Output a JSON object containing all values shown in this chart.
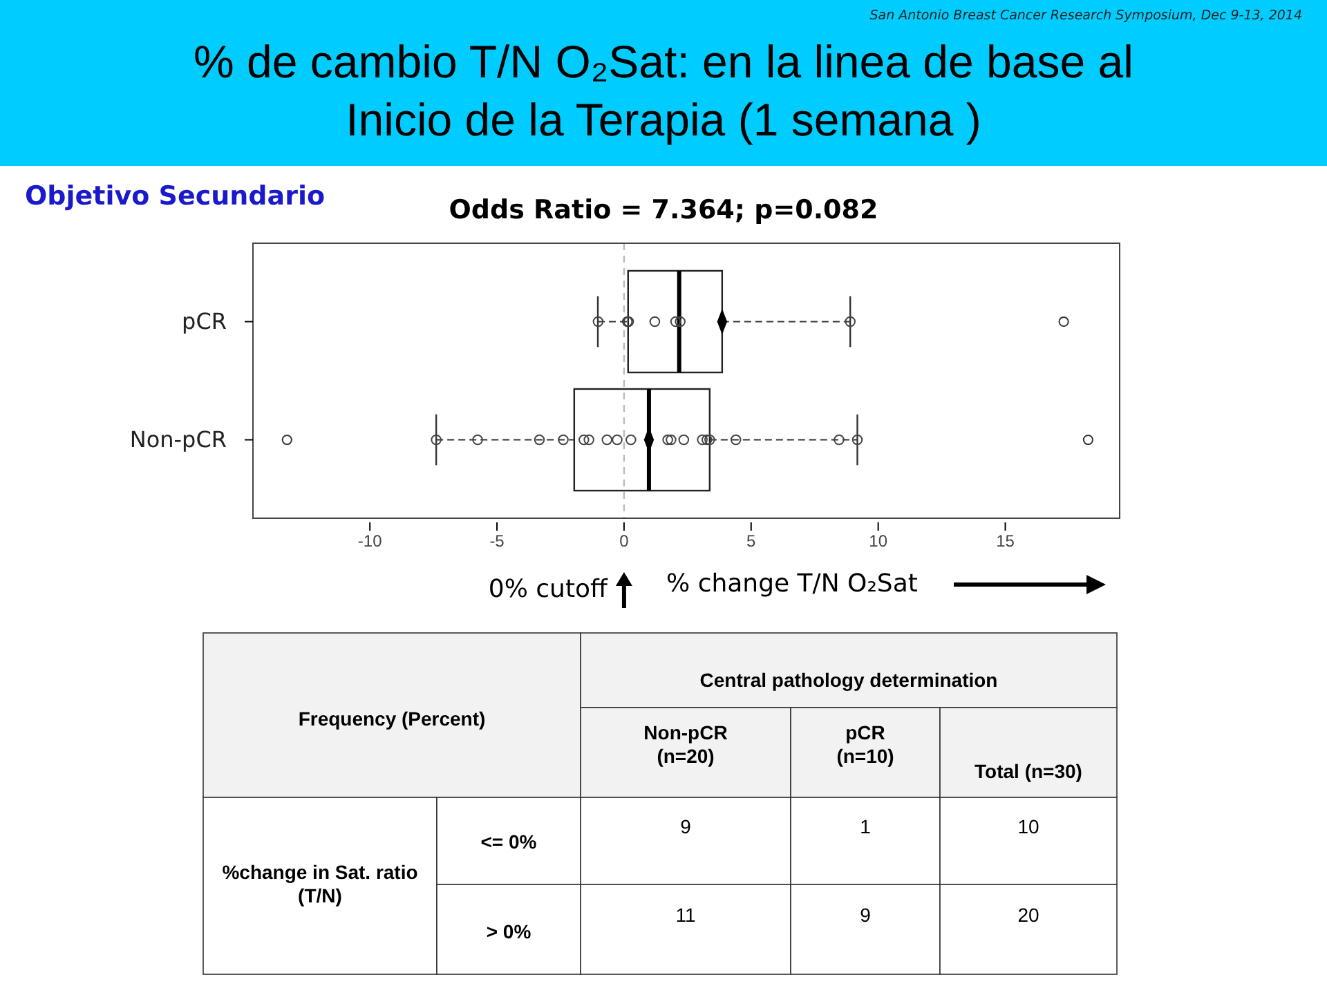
{
  "chart_data": {
    "type": "box",
    "orientation": "horizontal",
    "title": "% de cambio T/N O₂Sat: en la linea de base al Inicio de la Terapia (1 semana )",
    "subtitle": "Odds Ratio = 7.364; p=0.082",
    "xlabel": "% change T/N O₂Sat",
    "categories": [
      "pCR",
      "Non-pCR"
    ],
    "xlim": [
      -14.6,
      19.5
    ],
    "xticks": [
      -10,
      -5,
      0,
      5,
      10,
      15
    ],
    "grid": false,
    "boxes": [
      {
        "low": -1.03,
        "q1": 0.16,
        "median": 2.17,
        "q3": 3.86,
        "high": 8.9,
        "mean": 3.86,
        "outliers": [
          17.3
        ]
      },
      {
        "low": -7.39,
        "q1": -1.96,
        "median": 0.98,
        "q3": 3.37,
        "high": 9.18,
        "mean": 0.98,
        "outliers": [
          -13.26,
          18.26
        ]
      }
    ],
    "series": [
      {
        "type": "scatter",
        "color": "#444444",
        "marker": "circle",
        "x": [
          "pCR",
          "pCR",
          "pCR",
          "pCR",
          "pCR",
          "pCR",
          "pCR"
        ],
        "values": [
          -1.02,
          0.13,
          0.18,
          1.21,
          2.03,
          2.21,
          8.9
        ]
      },
      {
        "type": "scatter",
        "color": "#444444",
        "marker": "circle",
        "x": [
          "Non-pCR",
          "Non-pCR",
          "Non-pCR",
          "Non-pCR",
          "Non-pCR",
          "Non-pCR",
          "Non-pCR",
          "Non-pCR",
          "Non-pCR",
          "Non-pCR",
          "Non-pCR",
          "Non-pCR",
          "Non-pCR",
          "Non-pCR",
          "Non-pCR",
          "Non-pCR",
          "Non-pCR",
          "Non-pCR"
        ],
        "values": [
          -7.39,
          -5.76,
          -3.33,
          -2.39,
          -1.58,
          -1.38,
          -0.67,
          -0.27,
          0.27,
          1.72,
          1.85,
          2.35,
          3.08,
          3.26,
          3.37,
          4.4,
          8.46,
          9.18
        ]
      }
    ],
    "ref_lines": [
      {
        "axis": "x",
        "value": 0,
        "label": "0% cutoff",
        "color": "#bbbbbb",
        "line_style": "dashed"
      }
    ],
    "annotations": [
      "San Antonio Breast Cancer Research Symposium, Dec 9-13, 2014",
      "Objetivo Secundario",
      "Frequency (Percent)",
      "Central pathology determination",
      "Non-pCR\n(n=20)",
      "pCR\n(n=10)",
      "Total (n=30)",
      "%change in Sat. ratio (T/N)",
      "<= 0%",
      "> 0%",
      "9",
      "1",
      "10",
      "11",
      "9",
      "20"
    ]
  }
}
